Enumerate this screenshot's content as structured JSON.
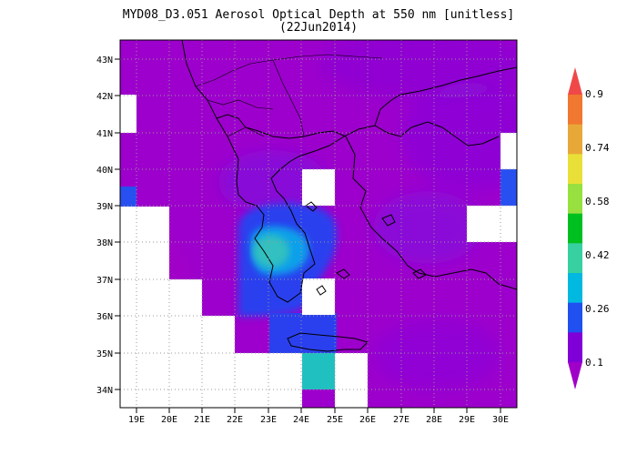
{
  "title": {
    "line1": "MYD08_D3.051 Aerosol Optical Depth at 550 nm [unitless]",
    "line2": "(22Jun2014)"
  },
  "map": {
    "lat_range": [
      33.5,
      44.5
    ],
    "lon_range": [
      18.5,
      30.5
    ],
    "lat_ticks": [
      "43N",
      "42N",
      "41N",
      "40N",
      "39N",
      "38N",
      "37N",
      "36N",
      "35N",
      "34N"
    ],
    "lon_ticks": [
      "19E",
      "20E",
      "21E",
      "22E",
      "23E",
      "24E",
      "25E",
      "26E",
      "27E",
      "28E",
      "29E",
      "30E"
    ],
    "gridlines": "dotted"
  },
  "colorbar": {
    "labels": [
      "0.9",
      "0.74",
      "0.58",
      "0.42",
      "0.26",
      "0.1"
    ],
    "colors": [
      "#f04848",
      "#f07830",
      "#e8a838",
      "#e8e038",
      "#98e040",
      "#00c020",
      "#38d0a0",
      "#00b8e0",
      "#2050f0",
      "#8000d8",
      "#a000c8"
    ]
  }
}
